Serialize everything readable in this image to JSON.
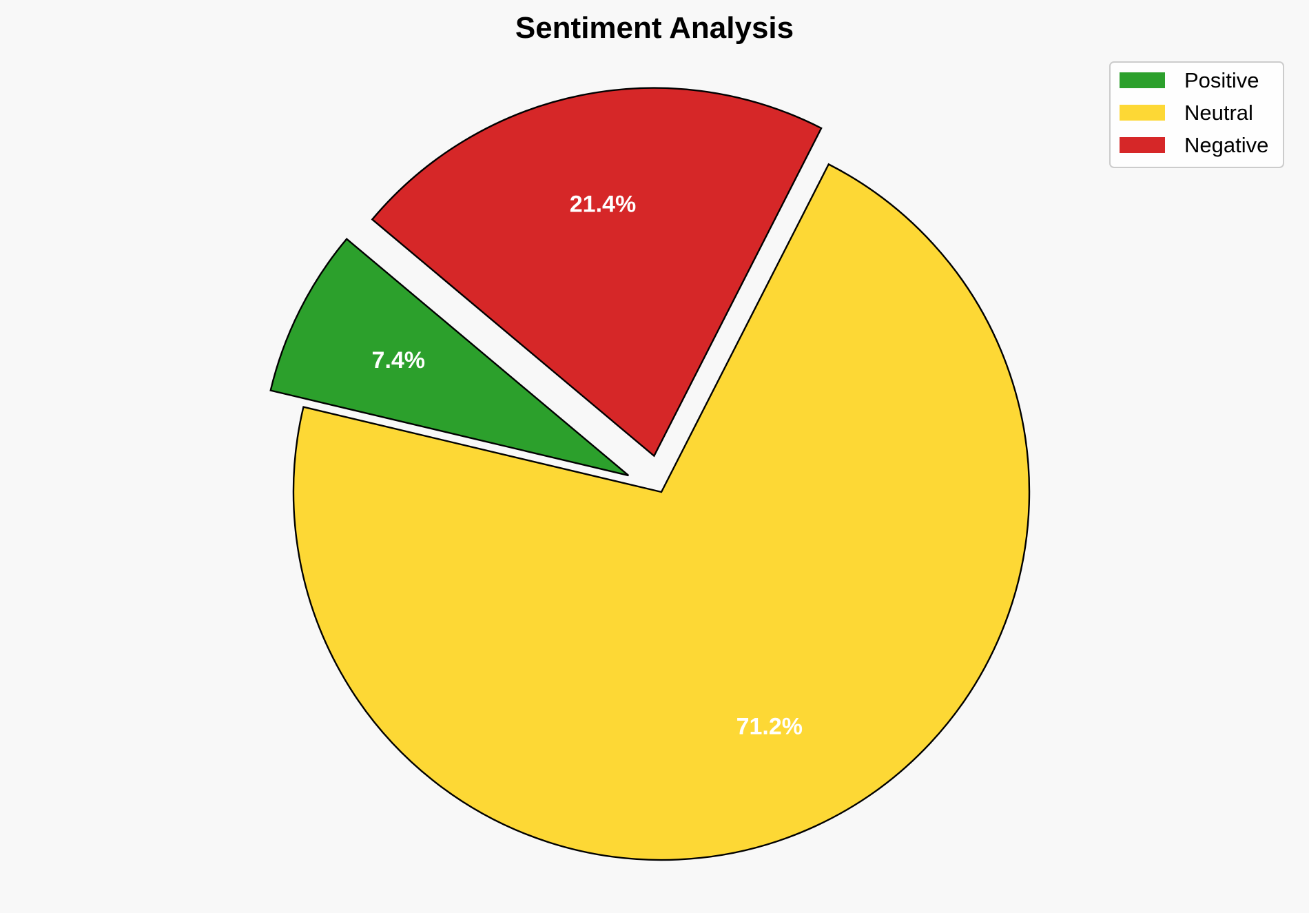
{
  "chart_data": {
    "type": "pie",
    "title": "Sentiment Analysis",
    "labels": [
      "Positive",
      "Neutral",
      "Negative"
    ],
    "values": [
      7.4,
      71.2,
      21.4
    ],
    "pct_labels": [
      "7.4%",
      "71.2%",
      "21.4%"
    ],
    "colors": [
      "#2ca02c",
      "#fdd835",
      "#d62728"
    ],
    "explode": [
      0.1,
      0,
      0.1
    ],
    "start_angle": 140,
    "legend_position": "top-right"
  }
}
